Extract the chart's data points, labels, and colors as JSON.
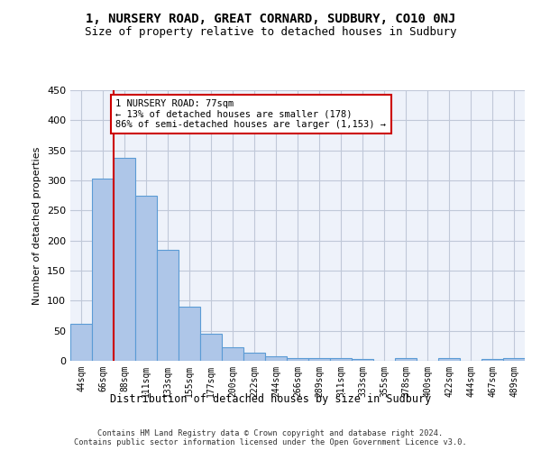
{
  "title1": "1, NURSERY ROAD, GREAT CORNARD, SUDBURY, CO10 0NJ",
  "title2": "Size of property relative to detached houses in Sudbury",
  "xlabel": "Distribution of detached houses by size in Sudbury",
  "ylabel": "Number of detached properties",
  "bar_values": [
    61,
    303,
    338,
    275,
    185,
    90,
    45,
    23,
    13,
    8,
    4,
    5,
    4,
    3,
    0,
    4,
    0,
    4,
    0,
    3,
    4
  ],
  "bar_labels": [
    "44sqm",
    "66sqm",
    "88sqm",
    "111sqm",
    "133sqm",
    "155sqm",
    "177sqm",
    "200sqm",
    "222sqm",
    "244sqm",
    "266sqm",
    "289sqm",
    "311sqm",
    "333sqm",
    "355sqm",
    "378sqm",
    "400sqm",
    "422sqm",
    "444sqm",
    "467sqm",
    "489sqm"
  ],
  "bar_color": "#aec6e8",
  "bar_edge_color": "#5b9bd5",
  "vline_x": 1.5,
  "vline_color": "#cc0000",
  "annotation_text": "1 NURSERY ROAD: 77sqm\n← 13% of detached houses are smaller (178)\n86% of semi-detached houses are larger (1,153) →",
  "annotation_box_edgecolor": "#cc0000",
  "ylim": [
    0,
    450
  ],
  "yticks": [
    0,
    50,
    100,
    150,
    200,
    250,
    300,
    350,
    400,
    450
  ],
  "background_color": "#eef2fa",
  "grid_color": "#c0c8d8",
  "footer_text": "Contains HM Land Registry data © Crown copyright and database right 2024.\nContains public sector information licensed under the Open Government Licence v3.0.",
  "title1_fontsize": 10,
  "title2_fontsize": 9,
  "bar_width": 1.0
}
